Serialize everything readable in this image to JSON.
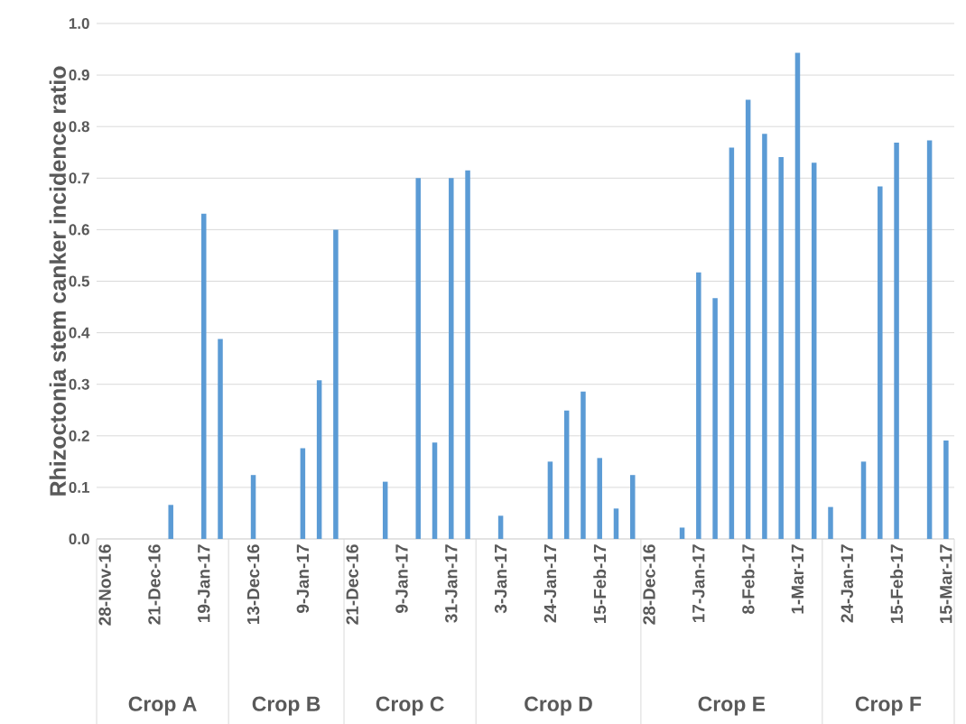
{
  "chart_data": {
    "type": "bar",
    "ylabel": "Rhizoctonia stem canker incidence ratio",
    "categories": [
      "28-Nov-16",
      null,
      null,
      "21-Dec-16",
      null,
      null,
      "19-Jan-17",
      null,
      null,
      "13-Dec-16",
      null,
      null,
      "9-Jan-17",
      null,
      null,
      "21-Dec-16",
      null,
      null,
      "9-Jan-17",
      null,
      null,
      "31-Jan-17",
      null,
      null,
      "3-Jan-17",
      null,
      null,
      "24-Jan-17",
      null,
      null,
      "15-Feb-17",
      null,
      null,
      "28-Dec-16",
      null,
      null,
      "17-Jan-17",
      null,
      null,
      "8-Feb-17",
      null,
      null,
      "1-Mar-17",
      null,
      null,
      "24-Jan-17",
      null,
      null,
      "15-Feb-17",
      null,
      null,
      "15-Mar-17"
    ],
    "values": [
      null,
      null,
      null,
      null,
      0.066,
      null,
      0.631,
      0.388,
      null,
      0.124,
      null,
      null,
      0.176,
      0.308,
      0.6,
      null,
      null,
      0.111,
      null,
      0.7,
      0.187,
      0.7,
      0.715,
      null,
      0.045,
      null,
      null,
      0.15,
      0.249,
      0.286,
      0.157,
      0.059,
      0.124,
      null,
      null,
      0.022,
      0.517,
      0.467,
      0.759,
      0.852,
      0.786,
      0.741,
      0.943,
      0.73,
      0.062,
      null,
      0.15,
      0.684,
      0.769,
      null,
      0.773,
      0.191
    ],
    "color": "#5b9bd5",
    "ylim": [
      0,
      1
    ],
    "yticks": [
      {
        "value": 0,
        "label": "0.0"
      },
      {
        "value": 0.1,
        "label": "0.1"
      },
      {
        "value": 0.2,
        "label": "0.2"
      },
      {
        "value": 0.3,
        "label": "0.3"
      },
      {
        "value": 0.4,
        "label": "0.4"
      },
      {
        "value": 0.5,
        "label": "0.5"
      },
      {
        "value": 0.6,
        "label": "0.6"
      },
      {
        "value": 0.7,
        "label": "0.7"
      },
      {
        "value": 0.8,
        "label": "0.8"
      },
      {
        "value": 0.9,
        "label": "0.9"
      },
      {
        "value": 1,
        "label": "1.0"
      }
    ],
    "grid": "y",
    "annotations": [
      "Crop A",
      "Crop B",
      "Crop C",
      "Crop D",
      "Crop E",
      "Crop F"
    ]
  }
}
